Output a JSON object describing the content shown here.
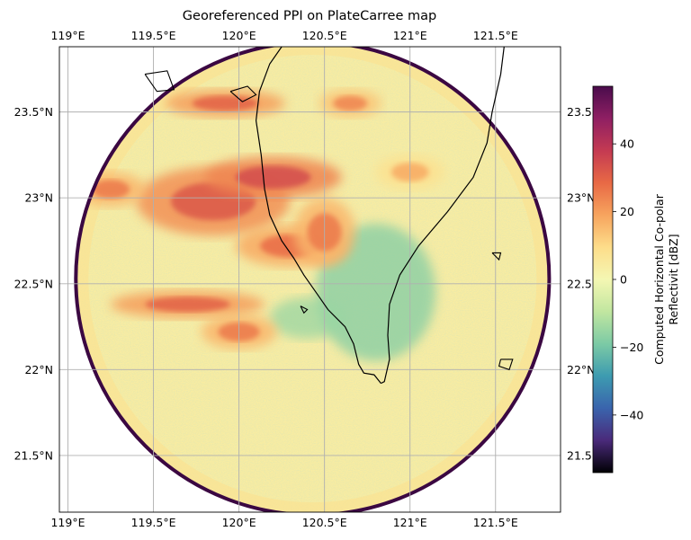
{
  "title": "Georeferenced PPI on PlateCarree map",
  "x_ticks": [
    {
      "lon": 119.0,
      "label": "119°E"
    },
    {
      "lon": 119.5,
      "label": "119.5°E"
    },
    {
      "lon": 120.0,
      "label": "120°E"
    },
    {
      "lon": 120.5,
      "label": "120.5°E"
    },
    {
      "lon": 121.0,
      "label": "121°E"
    },
    {
      "lon": 121.5,
      "label": "121.5°E"
    }
  ],
  "y_ticks": [
    {
      "lat": 23.5,
      "label": "23.5°N"
    },
    {
      "lat": 23.0,
      "label": "23°N"
    },
    {
      "lat": 22.5,
      "label": "22.5°N"
    },
    {
      "lat": 22.0,
      "label": "22°N"
    },
    {
      "lat": 21.5,
      "label": "21.5°N"
    }
  ],
  "right_y_ticks": [
    {
      "lat": 23.5,
      "label": "23.5"
    },
    {
      "lat": 23.0,
      "label": "23°N"
    },
    {
      "lat": 22.5,
      "label": "22.5"
    },
    {
      "lat": 22.0,
      "label": "22°N"
    },
    {
      "lat": 21.5,
      "label": "21.5"
    }
  ],
  "colorbar": {
    "label_line1": "Computed Horizontal Co-polar",
    "label_line2": "Reflectivit [dBZ]",
    "range": [
      -57,
      57
    ],
    "ticks": [
      {
        "value": 40,
        "label": "40"
      },
      {
        "value": 20,
        "label": "20"
      },
      {
        "value": 0,
        "label": "0"
      },
      {
        "value": -20,
        "label": "−20"
      },
      {
        "value": -40,
        "label": "−40"
      }
    ],
    "colormap": "Spectral_r",
    "stops": [
      "#000004",
      "#4a2a7a",
      "#3a64ad",
      "#3d9bb0",
      "#7ccaa5",
      "#c1e6a0",
      "#f4f7b3",
      "#fddd8a",
      "#f7a45e",
      "#e86945",
      "#c43a52",
      "#8f1f63",
      "#4a0c4c"
    ]
  },
  "map_data": {
    "projection": "PlateCarree",
    "extent": {
      "lon": [
        118.95,
        121.88
      ],
      "lat": [
        21.17,
        23.88
      ]
    },
    "radar_center": {
      "lon": 120.43,
      "lat": 22.53
    },
    "radar_radius_deg": 1.38,
    "gridlines": true,
    "coastline_taiwan_west": [
      [
        120.25,
        23.88
      ],
      [
        120.18,
        23.78
      ],
      [
        120.12,
        23.62
      ],
      [
        120.1,
        23.45
      ],
      [
        120.13,
        23.25
      ],
      [
        120.15,
        23.05
      ],
      [
        120.18,
        22.9
      ],
      [
        120.25,
        22.75
      ],
      [
        120.32,
        22.65
      ],
      [
        120.38,
        22.55
      ],
      [
        120.45,
        22.45
      ],
      [
        120.52,
        22.35
      ],
      [
        120.62,
        22.25
      ],
      [
        120.67,
        22.15
      ],
      [
        120.7,
        22.03
      ],
      [
        120.73,
        21.98
      ],
      [
        120.79,
        21.97
      ],
      [
        120.83,
        21.92
      ]
    ],
    "coastline_taiwan_east": [
      [
        121.55,
        23.88
      ],
      [
        121.53,
        23.72
      ],
      [
        121.48,
        23.5
      ],
      [
        121.45,
        23.32
      ],
      [
        121.37,
        23.12
      ],
      [
        121.22,
        22.92
      ],
      [
        121.05,
        22.72
      ],
      [
        120.94,
        22.55
      ],
      [
        120.88,
        22.38
      ],
      [
        120.87,
        22.2
      ],
      [
        120.88,
        22.06
      ],
      [
        120.85,
        21.93
      ],
      [
        120.83,
        21.92
      ]
    ],
    "islands": [
      [
        [
          119.95,
          23.62
        ],
        [
          120.05,
          23.65
        ],
        [
          120.1,
          23.6
        ],
        [
          120.02,
          23.56
        ],
        [
          119.95,
          23.62
        ]
      ],
      [
        [
          119.45,
          23.72
        ],
        [
          119.58,
          23.74
        ],
        [
          119.62,
          23.63
        ],
        [
          119.52,
          23.62
        ],
        [
          119.45,
          23.72
        ]
      ],
      [
        [
          121.48,
          22.68
        ],
        [
          121.53,
          22.68
        ],
        [
          121.52,
          22.64
        ],
        [
          121.48,
          22.68
        ]
      ],
      [
        [
          121.53,
          22.06
        ],
        [
          121.6,
          22.06
        ],
        [
          121.58,
          22.0
        ],
        [
          121.52,
          22.02
        ],
        [
          121.53,
          22.06
        ]
      ],
      [
        [
          120.36,
          22.37
        ],
        [
          120.4,
          22.35
        ],
        [
          120.38,
          22.33
        ],
        [
          120.36,
          22.37
        ]
      ]
    ],
    "echo_cells": [
      {
        "lon": 119.85,
        "lat": 22.98,
        "rx": 0.45,
        "ry": 0.2,
        "dbz": 32
      },
      {
        "lon": 119.25,
        "lat": 23.05,
        "rx": 0.2,
        "ry": 0.1,
        "dbz": 26
      },
      {
        "lon": 119.92,
        "lat": 23.55,
        "rx": 0.35,
        "ry": 0.08,
        "dbz": 30
      },
      {
        "lon": 120.65,
        "lat": 23.55,
        "rx": 0.18,
        "ry": 0.08,
        "dbz": 24
      },
      {
        "lon": 120.3,
        "lat": 22.72,
        "rx": 0.32,
        "ry": 0.12,
        "dbz": 28
      },
      {
        "lon": 120.5,
        "lat": 22.8,
        "rx": 0.18,
        "ry": 0.2,
        "dbz": 26
      },
      {
        "lon": 119.7,
        "lat": 22.38,
        "rx": 0.45,
        "ry": 0.08,
        "dbz": 30
      },
      {
        "lon": 120.0,
        "lat": 22.22,
        "rx": 0.22,
        "ry": 0.1,
        "dbz": 26
      },
      {
        "lon": 120.2,
        "lat": 23.12,
        "rx": 0.4,
        "ry": 0.12,
        "dbz": 34
      },
      {
        "lon": 121.0,
        "lat": 23.15,
        "rx": 0.2,
        "ry": 0.1,
        "dbz": 18
      }
    ],
    "clear_zones": [
      {
        "lon": 120.8,
        "lat": 22.45,
        "rx": 0.35,
        "ry": 0.4,
        "dbz": -18
      },
      {
        "lon": 120.4,
        "lat": 22.3,
        "rx": 0.22,
        "ry": 0.12,
        "dbz": -15
      }
    ]
  }
}
